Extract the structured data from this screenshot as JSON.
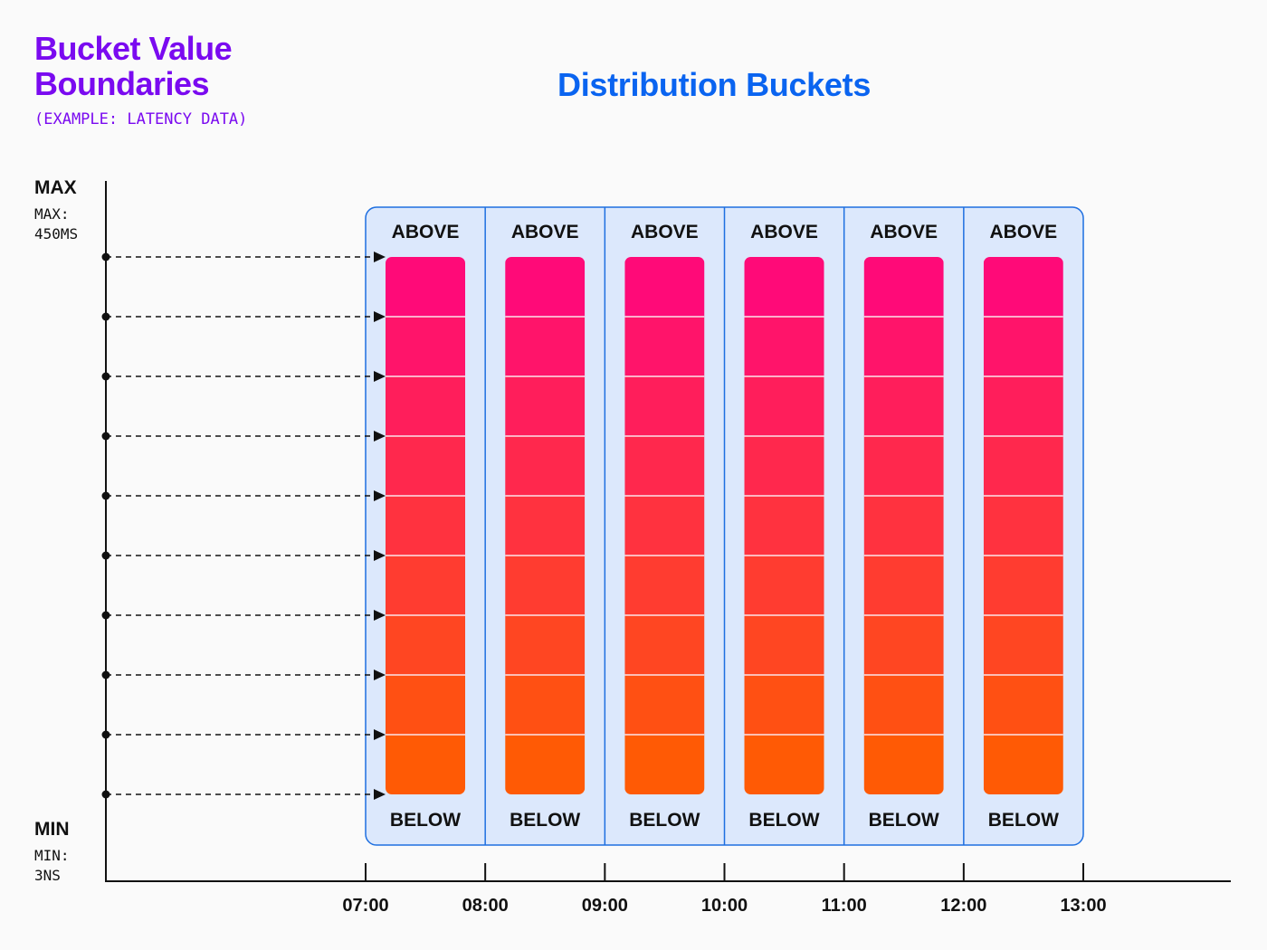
{
  "title": {
    "line1": "Bucket Value",
    "line2": "Boundaries",
    "subtitle": "(EXAMPLE: LATENCY DATA)"
  },
  "chart_title": "Distribution Buckets",
  "axis": {
    "max_label": "MAX",
    "max_value_line1": "MAX:",
    "max_value_line2": "450MS",
    "min_label": "MIN",
    "min_value_line1": "MIN:",
    "min_value_line2": "3NS"
  },
  "columns": [
    {
      "top": "ABOVE",
      "bottom": "BELOW"
    },
    {
      "top": "ABOVE",
      "bottom": "BELOW"
    },
    {
      "top": "ABOVE",
      "bottom": "BELOW"
    },
    {
      "top": "ABOVE",
      "bottom": "BELOW"
    },
    {
      "top": "ABOVE",
      "bottom": "BELOW"
    },
    {
      "top": "ABOVE",
      "bottom": "BELOW"
    }
  ],
  "times": [
    "07:00",
    "08:00",
    "09:00",
    "10:00",
    "11:00",
    "12:00",
    "13:00"
  ],
  "boundary_count": 10,
  "colors": {
    "panel_fill": "#dce8fc",
    "panel_stroke": "#1e6fe0",
    "bucket_top": "#ff0a78",
    "bucket_bottom": "#ff5a05",
    "axis": "#111111"
  }
}
